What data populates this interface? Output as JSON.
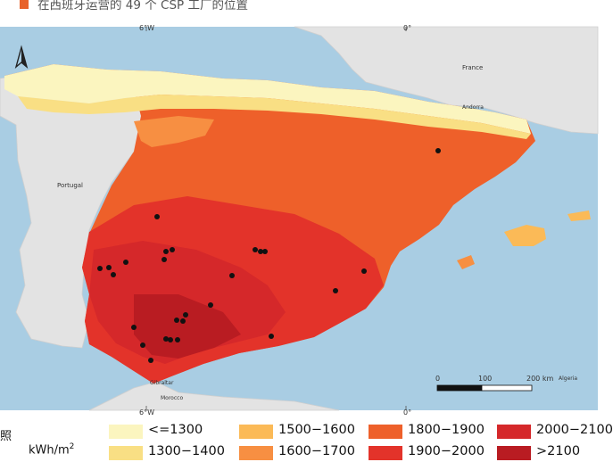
{
  "caption": "在西班牙运营的 49 个 CSP 工厂的位置",
  "map": {
    "graticule": {
      "lon_top_left": "6°W",
      "lon_top_right": "0°",
      "lon_bottom_left": "6°W",
      "lon_bottom_right": "0°"
    },
    "labels": {
      "france": "France",
      "andorra": "Andorra",
      "portugal": "Portugal",
      "algeria": "Algeria",
      "gibraltar": "Gibraltar",
      "morocco": "Morocco"
    },
    "scalebar": {
      "zero": "0",
      "mid": "100",
      "end": "200 km"
    },
    "north_arrow": "compass-north-arrow-icon",
    "colors": {
      "sea": "#a9cde3",
      "land": "#e3e3e3"
    }
  },
  "legend": {
    "title_char": "照",
    "unit_prefix": "kWh/m",
    "unit_sup": "2",
    "items": [
      {
        "label": "<=1300",
        "color": "#fbf5bf"
      },
      {
        "label": "1300−1400",
        "color": "#f9df84"
      },
      {
        "label": "1500−1600",
        "color": "#fbba57"
      },
      {
        "label": "1600−1700",
        "color": "#f78f42"
      },
      {
        "label": "1800−1900",
        "color": "#ee602a"
      },
      {
        "label": "1900−2000",
        "color": "#e3332a"
      },
      {
        "label": "2000−2100",
        "color": "#d5282a"
      },
      {
        "label": ">2100",
        "color": "#b91c22"
      }
    ]
  }
}
